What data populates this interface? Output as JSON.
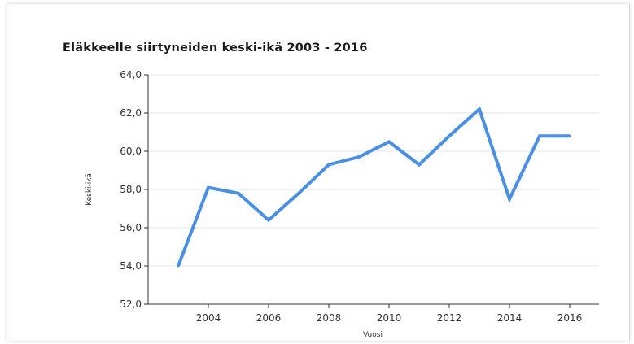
{
  "chart_data": {
    "type": "line",
    "title": "Eläkkeelle siirtyneiden keski-ikä 2003 - 2016",
    "ylabel": "Keski-ikä",
    "xlabel": "Vuosi",
    "ylim": [
      52,
      64
    ],
    "xlim": [
      2003,
      2016
    ],
    "yticks": [
      "52,0",
      "54,0",
      "56,0",
      "58,0",
      "60,0",
      "62,0",
      "64,0"
    ],
    "ytick_values": [
      52,
      54,
      56,
      58,
      60,
      62,
      64
    ],
    "xticks": [
      "2004",
      "2006",
      "2008",
      "2010",
      "2012",
      "2014",
      "2016"
    ],
    "xtick_values": [
      2004,
      2006,
      2008,
      2010,
      2012,
      2014,
      2016
    ],
    "grid": true,
    "line_color": "#4a8fe7",
    "series": [
      {
        "x": [
          2003,
          2004,
          2005,
          2006,
          2007,
          2008,
          2009,
          2010,
          2011,
          2012,
          2013,
          2014,
          2015,
          2016
        ],
        "values": [
          54.0,
          58.1,
          57.8,
          56.4,
          57.8,
          59.3,
          59.7,
          60.5,
          59.3,
          60.8,
          62.2,
          57.5,
          60.8,
          60.8
        ]
      }
    ]
  }
}
